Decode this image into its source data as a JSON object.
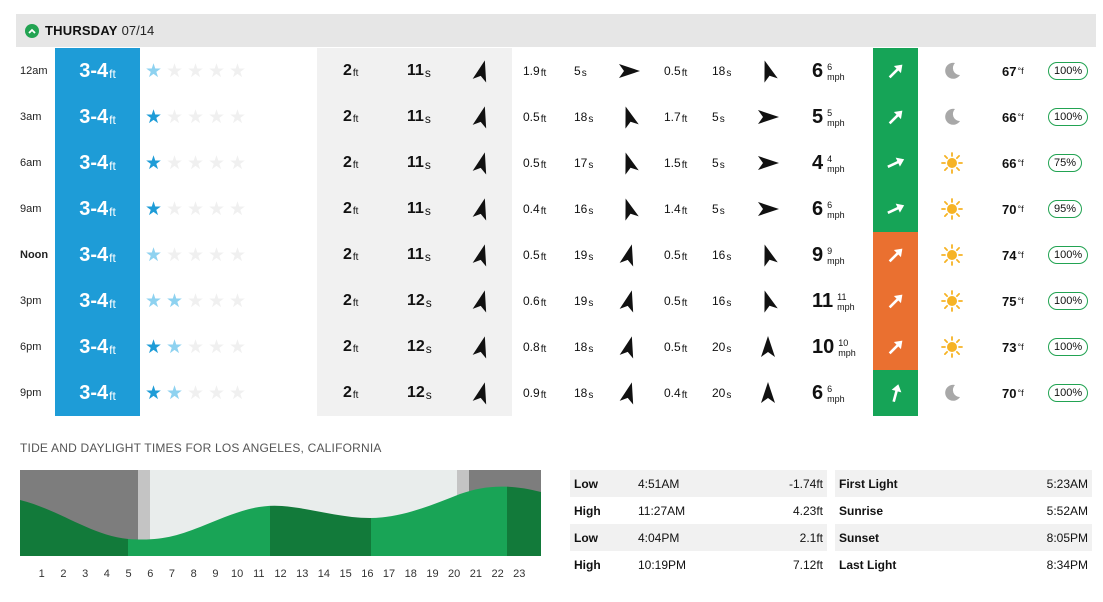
{
  "day": {
    "name": "THURSDAY",
    "date": "07/14"
  },
  "colors": {
    "surf": "#1e9cd7",
    "star": "#1e9cd7",
    "wind_good": "#16a457",
    "wind_onshore": "#ea7030",
    "tide_green": "#22a352"
  },
  "rows": [
    {
      "time": "12am",
      "bold": false,
      "surf": "3-4",
      "surf_unit": "ft",
      "rating": [
        "light",
        "empty",
        "empty",
        "empty",
        "empty"
      ],
      "s1_h": "2",
      "s1_h_u": "ft",
      "s1_p": "11",
      "s1_p_u": "s",
      "s1_dir": "north-northeast",
      "s2_h": "1.9",
      "s2_h_u": "ft",
      "s2_p": "5",
      "s2_p_u": "s",
      "s2_dir": "east",
      "s3_h": "0.5",
      "s3_h_u": "ft",
      "s3_p": "18",
      "s3_p_u": "s",
      "s3_dir": "north-northwest",
      "wind": "6",
      "gust": "6",
      "wind_unit": "mph",
      "wind_color": "green",
      "wind_dir": "northeast",
      "weather": "moon-icon",
      "temp": "67",
      "temp_unit": "°f",
      "prob": "100%"
    },
    {
      "time": "3am",
      "bold": false,
      "surf": "3-4",
      "surf_unit": "ft",
      "rating": [
        "full",
        "empty",
        "empty",
        "empty",
        "empty"
      ],
      "s1_h": "2",
      "s1_h_u": "ft",
      "s1_p": "11",
      "s1_p_u": "s",
      "s1_dir": "north-northeast",
      "s2_h": "0.5",
      "s2_h_u": "ft",
      "s2_p": "18",
      "s2_p_u": "s",
      "s2_dir": "north-northwest",
      "s3_h": "1.7",
      "s3_h_u": "ft",
      "s3_p": "5",
      "s3_p_u": "s",
      "s3_dir": "east",
      "wind": "5",
      "gust": "5",
      "wind_unit": "mph",
      "wind_color": "green",
      "wind_dir": "northeast",
      "weather": "moon-icon",
      "temp": "66",
      "temp_unit": "°f",
      "prob": "100%"
    },
    {
      "time": "6am",
      "bold": false,
      "surf": "3-4",
      "surf_unit": "ft",
      "rating": [
        "full",
        "empty",
        "empty",
        "empty",
        "empty"
      ],
      "s1_h": "2",
      "s1_h_u": "ft",
      "s1_p": "11",
      "s1_p_u": "s",
      "s1_dir": "north-northeast",
      "s2_h": "0.5",
      "s2_h_u": "ft",
      "s2_p": "17",
      "s2_p_u": "s",
      "s2_dir": "north-northwest",
      "s3_h": "1.5",
      "s3_h_u": "ft",
      "s3_p": "5",
      "s3_p_u": "s",
      "s3_dir": "east",
      "wind": "4",
      "gust": "4",
      "wind_unit": "mph",
      "wind_color": "green",
      "wind_dir": "east-northeast",
      "weather": "sun-icon",
      "temp": "66",
      "temp_unit": "°f",
      "prob": "75%"
    },
    {
      "time": "9am",
      "bold": false,
      "surf": "3-4",
      "surf_unit": "ft",
      "rating": [
        "full",
        "empty",
        "empty",
        "empty",
        "empty"
      ],
      "s1_h": "2",
      "s1_h_u": "ft",
      "s1_p": "11",
      "s1_p_u": "s",
      "s1_dir": "north-northeast",
      "s2_h": "0.4",
      "s2_h_u": "ft",
      "s2_p": "16",
      "s2_p_u": "s",
      "s2_dir": "north-northwest",
      "s3_h": "1.4",
      "s3_h_u": "ft",
      "s3_p": "5",
      "s3_p_u": "s",
      "s3_dir": "east",
      "wind": "6",
      "gust": "6",
      "wind_unit": "mph",
      "wind_color": "green",
      "wind_dir": "east-northeast",
      "weather": "sun-icon",
      "temp": "70",
      "temp_unit": "°f",
      "prob": "95%"
    },
    {
      "time": "Noon",
      "bold": true,
      "surf": "3-4",
      "surf_unit": "ft",
      "rating": [
        "light",
        "empty",
        "empty",
        "empty",
        "empty"
      ],
      "s1_h": "2",
      "s1_h_u": "ft",
      "s1_p": "11",
      "s1_p_u": "s",
      "s1_dir": "north-northeast",
      "s2_h": "0.5",
      "s2_h_u": "ft",
      "s2_p": "19",
      "s2_p_u": "s",
      "s2_dir": "north-northeast",
      "s3_h": "0.5",
      "s3_h_u": "ft",
      "s3_p": "16",
      "s3_p_u": "s",
      "s3_dir": "north-northwest",
      "wind": "9",
      "gust": "9",
      "wind_unit": "mph",
      "wind_color": "orange",
      "wind_dir": "northeast",
      "weather": "sun-icon",
      "temp": "74",
      "temp_unit": "°f",
      "prob": "100%"
    },
    {
      "time": "3pm",
      "bold": false,
      "surf": "3-4",
      "surf_unit": "ft",
      "rating": [
        "light",
        "light",
        "empty",
        "empty",
        "empty"
      ],
      "s1_h": "2",
      "s1_h_u": "ft",
      "s1_p": "12",
      "s1_p_u": "s",
      "s1_dir": "north-northeast",
      "s2_h": "0.6",
      "s2_h_u": "ft",
      "s2_p": "19",
      "s2_p_u": "s",
      "s2_dir": "north-northeast",
      "s3_h": "0.5",
      "s3_h_u": "ft",
      "s3_p": "16",
      "s3_p_u": "s",
      "s3_dir": "north-northwest",
      "wind": "11",
      "gust": "11",
      "wind_unit": "mph",
      "wind_color": "orange",
      "wind_dir": "northeast",
      "weather": "sun-icon",
      "temp": "75",
      "temp_unit": "°f",
      "prob": "100%"
    },
    {
      "time": "6pm",
      "bold": false,
      "surf": "3-4",
      "surf_unit": "ft",
      "rating": [
        "full",
        "light",
        "empty",
        "empty",
        "empty"
      ],
      "s1_h": "2",
      "s1_h_u": "ft",
      "s1_p": "12",
      "s1_p_u": "s",
      "s1_dir": "north-northeast",
      "s2_h": "0.8",
      "s2_h_u": "ft",
      "s2_p": "18",
      "s2_p_u": "s",
      "s2_dir": "north-northeast",
      "s3_h": "0.5",
      "s3_h_u": "ft",
      "s3_p": "20",
      "s3_p_u": "s",
      "s3_dir": "north",
      "wind": "10",
      "gust": "10",
      "wind_unit": "mph",
      "wind_color": "orange",
      "wind_dir": "northeast",
      "weather": "sun-icon",
      "temp": "73",
      "temp_unit": "°f",
      "prob": "100%"
    },
    {
      "time": "9pm",
      "bold": false,
      "surf": "3-4",
      "surf_unit": "ft",
      "rating": [
        "full",
        "light",
        "empty",
        "empty",
        "empty"
      ],
      "s1_h": "2",
      "s1_h_u": "ft",
      "s1_p": "12",
      "s1_p_u": "s",
      "s1_dir": "north-northeast",
      "s2_h": "0.9",
      "s2_h_u": "ft",
      "s2_p": "18",
      "s2_p_u": "s",
      "s2_dir": "north-northeast",
      "s3_h": "0.4",
      "s3_h_u": "ft",
      "s3_p": "20",
      "s3_p_u": "s",
      "s3_dir": "north",
      "wind": "6",
      "gust": "6",
      "wind_unit": "mph",
      "wind_color": "green",
      "wind_dir": "north-northeast",
      "weather": "moon-icon",
      "temp": "70",
      "temp_unit": "°f",
      "prob": "100%"
    }
  ],
  "tide": {
    "title": "TIDE AND DAYLIGHT TIMES FOR LOS ANGELES, CALIFORNIA",
    "hours": [
      "1",
      "2",
      "3",
      "4",
      "5",
      "6",
      "7",
      "8",
      "9",
      "10",
      "11",
      "12",
      "13",
      "14",
      "15",
      "16",
      "17",
      "18",
      "19",
      "20",
      "21",
      "22",
      "23"
    ],
    "entries": [
      {
        "type": "Low",
        "time": "4:51AM",
        "height": "-1.74ft"
      },
      {
        "type": "High",
        "time": "11:27AM",
        "height": "4.23ft"
      },
      {
        "type": "Low",
        "time": "4:04PM",
        "height": "2.1ft"
      },
      {
        "type": "High",
        "time": "10:19PM",
        "height": "7.12ft"
      }
    ],
    "daylight": [
      {
        "label": "First Light",
        "time": "5:23AM"
      },
      {
        "label": "Sunrise",
        "time": "5:52AM"
      },
      {
        "label": "Sunset",
        "time": "8:05PM"
      },
      {
        "label": "Last Light",
        "time": "8:34PM"
      }
    ]
  }
}
